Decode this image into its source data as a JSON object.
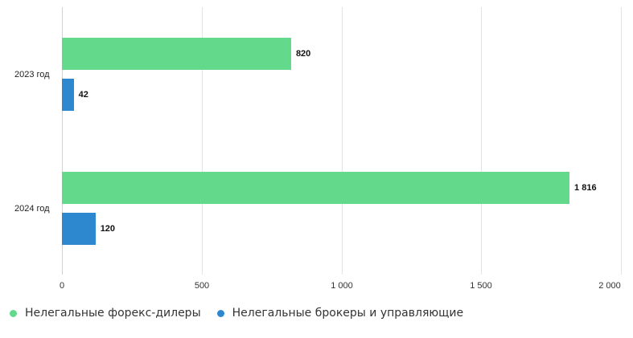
{
  "chart_data": {
    "type": "bar",
    "orientation": "horizontal",
    "categories": [
      "2023 год",
      "2024 год"
    ],
    "series": [
      {
        "name": "Нелегальные форекс-дилеры",
        "color": "#62d98b",
        "values": [
          820,
          1816
        ],
        "labels": [
          "820",
          "1 816"
        ]
      },
      {
        "name": "Нелегальные брокеры и управляющие",
        "color": "#2e88d0",
        "values": [
          42,
          120
        ],
        "labels": [
          "42",
          "120"
        ]
      }
    ],
    "title": "",
    "xlabel": "",
    "ylabel": "",
    "xlim": [
      0,
      2000
    ],
    "x_ticks": [
      "0",
      "500",
      "1 000",
      "1 500",
      "2 000"
    ],
    "grid": true,
    "legend_position": "bottom"
  }
}
